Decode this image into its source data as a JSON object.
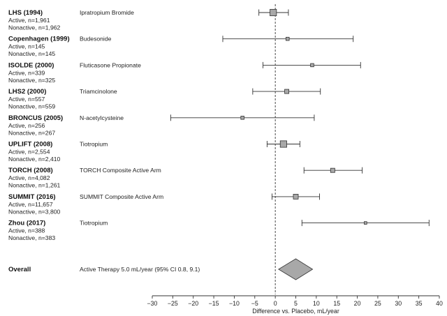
{
  "chart_data": {
    "type": "forest",
    "xlabel": "Difference vs. Placebo, mL/year",
    "xlim": [
      -30,
      40
    ],
    "xticks": [
      -30,
      -25,
      -20,
      -15,
      -10,
      -5,
      0,
      5,
      10,
      15,
      20,
      25,
      30,
      35,
      40
    ],
    "reference_line": 0,
    "studies": [
      {
        "name": "LHS (1994)",
        "active": "Active, n=1,961",
        "nonactive": "Nonactive, n=1,962",
        "treatment": "Ipratropium Bromide",
        "estimate": -0.5,
        "ci": [
          -4.0,
          3.2
        ],
        "weight": 3
      },
      {
        "name": "Copenhagen (1999)",
        "active": "Active, n=145",
        "nonactive": "Nonactive, n=145",
        "treatment": "Budesonide",
        "estimate": 3.0,
        "ci": [
          -12.8,
          19.0
        ],
        "weight": 1
      },
      {
        "name": "ISOLDE (2000)",
        "active": "Active, n=339",
        "nonactive": "Nonactive, n=325",
        "treatment": "Fluticasone Propionate",
        "estimate": 9.0,
        "ci": [
          -3.0,
          20.8
        ],
        "weight": 1
      },
      {
        "name": "LHS2 (2000)",
        "active": "Active, n=557",
        "nonactive": "Nonactive, n=559",
        "treatment": "Triamcinolone",
        "estimate": 2.8,
        "ci": [
          -5.5,
          11.0
        ],
        "weight": 1.6
      },
      {
        "name": "BRONCUS (2005)",
        "active": "Active, n=256",
        "nonactive": "Nonactive, n=267",
        "treatment": "N-acetylcysteine",
        "estimate": -8.0,
        "ci": [
          -25.5,
          9.5
        ],
        "weight": 1
      },
      {
        "name": "UPLIFT (2008)",
        "active": "Active, n=2,554",
        "nonactive": "Nonactive, n=2,410",
        "treatment": "Tiotropium",
        "estimate": 2.0,
        "ci": [
          -2.0,
          6.0
        ],
        "weight": 3
      },
      {
        "name": "TORCH (2008)",
        "active": "Active, n=4,082",
        "nonactive": "Nonactive, n=1,261",
        "treatment": "TORCH Composite Active Arm",
        "estimate": 14.0,
        "ci": [
          7.0,
          21.2
        ],
        "weight": 1.6
      },
      {
        "name": "SUMMIT (2016)",
        "active": "Active, n=11,657",
        "nonactive": "Nonactive, n=3,800",
        "treatment": "SUMMIT Composite Active Arm",
        "estimate": 5.0,
        "ci": [
          -0.8,
          10.8
        ],
        "weight": 2
      },
      {
        "name": "Zhou (2017)",
        "active": "Active, n=388",
        "nonactive": "Nonactive, n=383",
        "treatment": "Tiotropium",
        "estimate": 22.0,
        "ci": [
          6.5,
          37.5
        ],
        "weight": 0.6
      }
    ],
    "overall": {
      "name": "Overall",
      "label": "Active Therapy 5.0 mL/year (95% CI 0.8, 9.1)",
      "estimate": 5.0,
      "ci": [
        0.8,
        9.1
      ]
    },
    "colors": {
      "box_fill": "#a8a8a8",
      "diamond_fill": "#a8a8a8",
      "line": "#333333",
      "reference": "#333333"
    }
  }
}
